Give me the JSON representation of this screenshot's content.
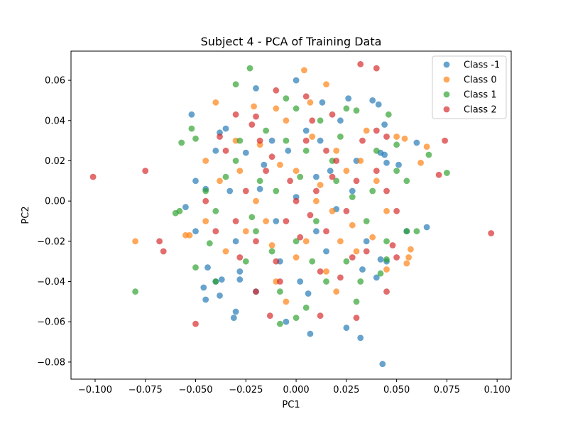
{
  "chart_data": {
    "type": "scatter",
    "title": "Subject 4 - PCA of Training Data",
    "xlabel": "PC1",
    "ylabel": "PC2",
    "xlim": [
      -0.112,
      0.107
    ],
    "ylim": [
      -0.0885,
      0.0745
    ],
    "xticks": [
      -0.1,
      -0.075,
      -0.05,
      -0.025,
      0.0,
      0.025,
      0.05,
      0.075,
      0.1
    ],
    "xtick_labels": [
      "−0.100",
      "−0.075",
      "−0.050",
      "−0.025",
      "0.000",
      "0.025",
      "0.050",
      "0.075",
      "0.100"
    ],
    "yticks": [
      -0.08,
      -0.06,
      -0.04,
      -0.02,
      0.0,
      0.02,
      0.04,
      0.06
    ],
    "ytick_labels": [
      "−0.08",
      "−0.06",
      "−0.04",
      "−0.02",
      "0.00",
      "0.02",
      "0.04",
      "0.06"
    ],
    "grid": false,
    "legend_position": "top-right",
    "series": [
      {
        "name": "Class -1",
        "color": "#1f77b4",
        "points": [
          [
            -0.052,
            0.043
          ],
          [
            -0.0,
            0.06
          ],
          [
            -0.02,
            0.056
          ],
          [
            0.013,
            0.049
          ],
          [
            0.026,
            0.051
          ],
          [
            0.038,
            0.05
          ],
          [
            0.041,
            0.048
          ],
          [
            0.044,
            0.038
          ],
          [
            0.06,
            0.029
          ],
          [
            -0.035,
            0.036
          ],
          [
            -0.038,
            0.034
          ],
          [
            0.042,
            0.024
          ],
          [
            0.044,
            0.023
          ],
          [
            -0.05,
            0.01
          ],
          [
            -0.045,
            0.006
          ],
          [
            -0.055,
            -0.003
          ],
          [
            -0.05,
            -0.015
          ],
          [
            -0.044,
            -0.033
          ],
          [
            -0.046,
            -0.043
          ],
          [
            -0.045,
            -0.049
          ],
          [
            -0.038,
            -0.047
          ],
          [
            -0.04,
            -0.04
          ],
          [
            -0.037,
            -0.039
          ],
          [
            -0.028,
            -0.035
          ],
          [
            -0.028,
            -0.039
          ],
          [
            -0.03,
            -0.055
          ],
          [
            -0.031,
            -0.058
          ],
          [
            0.007,
            -0.066
          ],
          [
            0.032,
            -0.068
          ],
          [
            0.043,
            -0.081
          ],
          [
            0.025,
            -0.063
          ],
          [
            -0.005,
            -0.06
          ],
          [
            0.006,
            -0.046
          ],
          [
            0.045,
            -0.03
          ],
          [
            0.042,
            -0.029
          ],
          [
            0.04,
            -0.038
          ],
          [
            0.045,
            0.019
          ],
          [
            0.055,
            -0.015
          ],
          [
            0.065,
            -0.013
          ],
          [
            0.051,
            0.018
          ],
          [
            -0.018,
            0.006
          ],
          [
            -0.01,
            -0.01
          ],
          [
            0.0,
            0.002
          ],
          [
            0.01,
            0.012
          ],
          [
            0.02,
            -0.004
          ],
          [
            -0.025,
            0.024
          ],
          [
            0.03,
            0.02
          ],
          [
            -0.03,
            -0.02
          ],
          [
            0.015,
            -0.025
          ],
          [
            -0.012,
            0.03
          ],
          [
            0.005,
            0.035
          ],
          [
            -0.008,
            -0.03
          ],
          [
            0.035,
            -0.02
          ],
          [
            -0.04,
            0.025
          ],
          [
            0.022,
            0.04
          ],
          [
            -0.02,
            -0.045
          ],
          [
            0.017,
            0.015
          ],
          [
            -0.004,
            0.025
          ],
          [
            0.01,
            -0.015
          ],
          [
            0.028,
            0.005
          ],
          [
            -0.016,
            0.018
          ],
          [
            0.033,
            -0.034
          ],
          [
            -0.033,
            0.005
          ],
          [
            0.002,
            -0.04
          ],
          [
            0.012,
            0.03
          ]
        ]
      },
      {
        "name": "Class 0",
        "color": "#ff7f0e",
        "points": [
          [
            0.004,
            0.065
          ],
          [
            0.015,
            0.058
          ],
          [
            -0.04,
            0.049
          ],
          [
            -0.021,
            0.047
          ],
          [
            -0.01,
            0.046
          ],
          [
            0.007,
            0.049
          ],
          [
            0.05,
            0.032
          ],
          [
            0.054,
            0.031
          ],
          [
            0.062,
            0.019
          ],
          [
            0.065,
            0.027
          ],
          [
            -0.08,
            -0.02
          ],
          [
            -0.055,
            -0.017
          ],
          [
            -0.053,
            -0.017
          ],
          [
            0.057,
            -0.024
          ],
          [
            0.055,
            -0.031
          ],
          [
            0.056,
            -0.028
          ],
          [
            0.045,
            -0.034
          ],
          [
            0.02,
            -0.045
          ],
          [
            -0.005,
            -0.05
          ],
          [
            0.0,
            0.015
          ],
          [
            0.01,
            0.0
          ],
          [
            -0.015,
            -0.01
          ],
          [
            0.025,
            0.015
          ],
          [
            -0.03,
            0.03
          ],
          [
            0.03,
            -0.025
          ],
          [
            -0.005,
            0.04
          ],
          [
            0.015,
            -0.035
          ],
          [
            -0.035,
            -0.025
          ],
          [
            0.04,
            0.01
          ],
          [
            -0.045,
            0.02
          ],
          [
            -0.02,
            0.0
          ],
          [
            0.005,
            -0.02
          ],
          [
            0.02,
            0.025
          ],
          [
            -0.01,
            -0.04
          ],
          [
            0.035,
            0.035
          ],
          [
            -0.025,
            -0.015
          ],
          [
            0.012,
            0.008
          ],
          [
            -0.008,
            0.018
          ],
          [
            0.028,
            -0.012
          ],
          [
            -0.038,
            0.01
          ],
          [
            0.045,
            -0.005
          ],
          [
            0.0,
            -0.028
          ],
          [
            -0.018,
            0.028
          ],
          [
            0.022,
            -0.02
          ],
          [
            0.008,
            0.032
          ],
          [
            -0.012,
            -0.022
          ],
          [
            0.032,
            0.02
          ],
          [
            -0.028,
            0.015
          ],
          [
            0.018,
            -0.005
          ],
          [
            -0.045,
            -0.01
          ],
          [
            0.038,
            -0.018
          ]
        ]
      },
      {
        "name": "Class 1",
        "color": "#2ca02c",
        "points": [
          [
            -0.023,
            0.066
          ],
          [
            -0.03,
            0.058
          ],
          [
            -0.005,
            0.051
          ],
          [
            0.0,
            0.046
          ],
          [
            0.025,
            0.046
          ],
          [
            0.046,
            0.043
          ],
          [
            -0.052,
            0.036
          ],
          [
            -0.057,
            0.029
          ],
          [
            -0.05,
            0.031
          ],
          [
            0.05,
            0.028
          ],
          [
            0.066,
            0.023
          ],
          [
            0.075,
            0.014
          ],
          [
            -0.06,
            -0.006
          ],
          [
            -0.058,
            -0.005
          ],
          [
            -0.043,
            -0.021
          ],
          [
            -0.05,
            -0.033
          ],
          [
            -0.08,
            -0.045
          ],
          [
            -0.04,
            -0.04
          ],
          [
            0.03,
            -0.05
          ],
          [
            0.0,
            -0.058
          ],
          [
            -0.008,
            -0.061
          ],
          [
            0.005,
            -0.053
          ],
          [
            0.042,
            -0.036
          ],
          [
            0.045,
            -0.029
          ],
          [
            0.055,
            -0.015
          ],
          [
            0.06,
            -0.015
          ],
          [
            0.05,
            0.015
          ],
          [
            0.055,
            0.01
          ],
          [
            0.03,
            0.045
          ],
          [
            0.01,
            -0.01
          ],
          [
            -0.01,
            0.005
          ],
          [
            0.02,
            0.01
          ],
          [
            -0.02,
            -0.015
          ],
          [
            0.005,
            0.025
          ],
          [
            -0.03,
            0.02
          ],
          [
            0.025,
            -0.03
          ],
          [
            -0.015,
            0.035
          ],
          [
            0.035,
            -0.01
          ],
          [
            -0.04,
            -0.005
          ],
          [
            0.015,
            -0.04
          ],
          [
            0.04,
            0.025
          ],
          [
            -0.025,
            -0.03
          ],
          [
            0.0,
            -0.02
          ],
          [
            -0.005,
            0.03
          ],
          [
            0.018,
            0.02
          ],
          [
            -0.012,
            -0.025
          ],
          [
            0.028,
            0.002
          ],
          [
            -0.035,
            0.012
          ],
          [
            0.008,
            -0.03
          ],
          [
            0.022,
            0.032
          ],
          [
            -0.018,
            0.01
          ],
          [
            0.045,
            -0.02
          ],
          [
            -0.045,
            0.005
          ],
          [
            0.012,
            0.04
          ],
          [
            -0.008,
            -0.045
          ],
          [
            0.032,
            -0.04
          ],
          [
            -0.028,
            0.03
          ],
          [
            0.002,
            0.012
          ],
          [
            0.038,
            0.005
          ],
          [
            -0.022,
            -0.008
          ]
        ]
      },
      {
        "name": "Class 2",
        "color": "#d62728",
        "points": [
          [
            0.032,
            0.068
          ],
          [
            0.04,
            0.066
          ],
          [
            -0.101,
            0.012
          ],
          [
            -0.075,
            0.015
          ],
          [
            -0.068,
            -0.02
          ],
          [
            -0.066,
            -0.025
          ],
          [
            -0.05,
            -0.061
          ],
          [
            0.097,
            -0.016
          ],
          [
            0.074,
            0.03
          ],
          [
            0.071,
            0.013
          ],
          [
            0.045,
            0.032
          ],
          [
            0.04,
            0.035
          ],
          [
            -0.01,
            0.055
          ],
          [
            0.005,
            0.052
          ],
          [
            -0.03,
            0.043
          ],
          [
            -0.02,
            0.042
          ],
          [
            0.018,
            0.043
          ],
          [
            0.012,
            -0.057
          ],
          [
            0.03,
            -0.058
          ],
          [
            -0.013,
            -0.057
          ],
          [
            -0.02,
            -0.045
          ],
          [
            0.045,
            -0.045
          ],
          [
            0.05,
            -0.028
          ],
          [
            0.048,
            -0.022
          ],
          [
            0.0,
            0.0
          ],
          [
            0.01,
            0.005
          ],
          [
            -0.005,
            -0.01
          ],
          [
            0.015,
            -0.015
          ],
          [
            -0.015,
            0.015
          ],
          [
            0.02,
            0.02
          ],
          [
            -0.02,
            -0.02
          ],
          [
            0.025,
            -0.005
          ],
          [
            -0.025,
            0.005
          ],
          [
            0.005,
            0.03
          ],
          [
            -0.01,
            -0.03
          ],
          [
            0.03,
            0.01
          ],
          [
            -0.03,
            -0.01
          ],
          [
            0.012,
            -0.035
          ],
          [
            -0.018,
            0.03
          ],
          [
            0.035,
            -0.025
          ],
          [
            -0.035,
            0.025
          ],
          [
            0.04,
            0.015
          ],
          [
            -0.04,
            -0.015
          ],
          [
            0.008,
            0.04
          ],
          [
            -0.008,
            -0.04
          ],
          [
            0.022,
            -0.038
          ],
          [
            -0.022,
            0.038
          ],
          [
            0.045,
            0.005
          ],
          [
            -0.045,
            0.0
          ],
          [
            0.002,
            -0.018
          ],
          [
            0.018,
            0.012
          ],
          [
            -0.012,
            0.022
          ],
          [
            0.028,
            -0.028
          ],
          [
            -0.028,
            -0.028
          ],
          [
            0.015,
            0.025
          ],
          [
            -0.003,
            0.01
          ],
          [
            0.007,
            -0.007
          ],
          [
            -0.038,
            0.032
          ],
          [
            0.033,
            0.03
          ],
          [
            0.05,
            -0.005
          ]
        ]
      }
    ]
  }
}
